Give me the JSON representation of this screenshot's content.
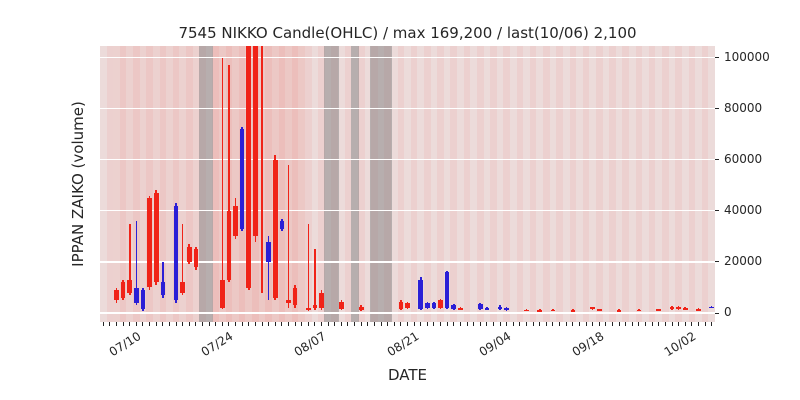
{
  "chart_data": {
    "type": "candlestick",
    "title": "7545 NIKKO Candle(OHLC) / max 169,200 / last(10/06) 2,100",
    "xlabel": "DATE",
    "ylabel": "IPPAN ZAIKO (volume)",
    "ticker": "7545",
    "name": "NIKKO",
    "max_value": 169200,
    "last": {
      "date": "10/06",
      "value": 2100
    },
    "ylim": [
      -3500,
      104500
    ],
    "y_ticks": [
      0,
      20000,
      40000,
      60000,
      80000,
      100000
    ],
    "x_range_days": 93,
    "x_ticks": [
      {
        "day": 4,
        "label": "07/10"
      },
      {
        "day": 18,
        "label": "07/24"
      },
      {
        "day": 32,
        "label": "08/07"
      },
      {
        "day": 46,
        "label": "08/21"
      },
      {
        "day": 60,
        "label": "09/04"
      },
      {
        "day": 74,
        "label": "09/18"
      },
      {
        "day": 88,
        "label": "10/02"
      }
    ],
    "legend": "none",
    "grid": true,
    "colors": {
      "up": "#f02318",
      "down": "#2b1fd6",
      "grid": "#ffffff",
      "plot_bg": "#ece6e6",
      "stripe_a": "rgba(240,35,24,0.055)",
      "stripe_b": "rgba(240,35,24,0.11)",
      "closed_day": "rgba(120,120,120,0.45)",
      "tick": "#262626"
    },
    "background_bands": [
      {
        "from": 1.5,
        "to": 14.4,
        "color": "rgba(240,35,24,0.05)"
      },
      {
        "from": 16.6,
        "to": 30.5,
        "color": "rgba(240,35,24,0.10)"
      },
      {
        "from": 14.4,
        "to": 16.6,
        "color": "rgba(120,120,120,0.45)"
      },
      {
        "from": 33.4,
        "to": 35.6,
        "color": "rgba(120,120,120,0.45)"
      },
      {
        "from": 37.4,
        "to": 38.6,
        "color": "rgba(120,120,120,0.45)"
      },
      {
        "from": 40.4,
        "to": 43.6,
        "color": "rgba(120,120,120,0.45)"
      }
    ],
    "candle_format": [
      "day",
      "date",
      "open",
      "high",
      "low",
      "close"
    ],
    "candles": [
      [
        2,
        "07/08",
        5000,
        10000,
        4000,
        9000
      ],
      [
        3,
        "07/09",
        6000,
        13000,
        5000,
        12000
      ],
      [
        4,
        "07/10",
        8000,
        35000,
        7000,
        13000
      ],
      [
        5,
        "07/11",
        10000,
        36000,
        3000,
        4000
      ],
      [
        6,
        "07/12",
        9000,
        10000,
        1000,
        1500
      ],
      [
        7,
        "07/13",
        10000,
        46000,
        9000,
        45000
      ],
      [
        8,
        "07/14",
        12000,
        48000,
        11000,
        47000
      ],
      [
        9,
        "07/15",
        12000,
        20000,
        6000,
        7000
      ],
      [
        11,
        "07/17",
        42000,
        43000,
        4000,
        5000
      ],
      [
        12,
        "07/18",
        8000,
        35000,
        7000,
        12000
      ],
      [
        13,
        "07/19",
        20000,
        27000,
        19000,
        26000
      ],
      [
        14,
        "07/20",
        18000,
        26000,
        17000,
        25000
      ],
      [
        18,
        "07/24",
        2000,
        100000,
        1500,
        13000
      ],
      [
        19,
        "07/25",
        13000,
        97000,
        12000,
        40000
      ],
      [
        20,
        "07/26",
        30000,
        45000,
        29000,
        42000
      ],
      [
        21,
        "07/27",
        72000,
        73000,
        32000,
        33000
      ],
      [
        22,
        "07/28",
        10000,
        169200,
        9000,
        165000
      ],
      [
        23,
        "07/29",
        30000,
        169200,
        28000,
        160000
      ],
      [
        24,
        "07/30",
        140000,
        169200,
        8000,
        169200
      ],
      [
        25,
        "07/31",
        28000,
        30000,
        5000,
        20000
      ],
      [
        26,
        "08/01",
        6000,
        62000,
        5000,
        60000
      ],
      [
        27,
        "08/02",
        36000,
        37000,
        32000,
        33000
      ],
      [
        28,
        "08/03",
        4000,
        58000,
        2000,
        5000
      ],
      [
        29,
        "08/04",
        3000,
        11000,
        2000,
        10000
      ],
      [
        31,
        "08/06",
        1000,
        35000,
        800,
        2000
      ],
      [
        32,
        "08/07",
        2000,
        25000,
        1000,
        3000
      ],
      [
        33,
        "08/08",
        2000,
        9000,
        1000,
        8000
      ],
      [
        36,
        "08/11",
        1500,
        5000,
        1000,
        4500
      ],
      [
        39,
        "08/14",
        1000,
        3000,
        800,
        2500
      ],
      [
        45,
        "08/20",
        1500,
        5000,
        1000,
        4500
      ],
      [
        46,
        "08/21",
        2000,
        4500,
        1500,
        4000
      ],
      [
        48,
        "08/23",
        13000,
        14000,
        1000,
        1500
      ],
      [
        49,
        "08/24",
        4000,
        4500,
        1500,
        2000
      ],
      [
        50,
        "08/25",
        4000,
        4500,
        1500,
        2000
      ],
      [
        51,
        "08/26",
        2000,
        5500,
        1500,
        5000
      ],
      [
        52,
        "08/27",
        16000,
        16500,
        1500,
        2000
      ],
      [
        53,
        "08/28",
        3000,
        3500,
        1000,
        1500
      ],
      [
        54,
        "08/29",
        1500,
        2500,
        1000,
        2000
      ],
      [
        57,
        "09/01",
        3500,
        4000,
        1000,
        1500
      ],
      [
        58,
        "09/02",
        2000,
        2500,
        1000,
        1200
      ],
      [
        60,
        "09/04",
        2500,
        3000,
        1000,
        1500
      ],
      [
        61,
        "09/05",
        2000,
        2200,
        900,
        1100
      ],
      [
        64,
        "09/08",
        1200,
        1500,
        900,
        1300
      ],
      [
        66,
        "09/10",
        1100,
        1400,
        900,
        1200
      ],
      [
        68,
        "09/12",
        1200,
        1500,
        900,
        1300
      ],
      [
        71,
        "09/15",
        1100,
        1400,
        800,
        1200
      ],
      [
        74,
        "09/18",
        1500,
        2500,
        1000,
        2200
      ],
      [
        75,
        "09/19",
        1300,
        1600,
        900,
        1400
      ],
      [
        78,
        "09/22",
        1100,
        1400,
        800,
        1200
      ],
      [
        81,
        "09/25",
        1200,
        1500,
        900,
        1300
      ],
      [
        84,
        "09/28",
        1300,
        1700,
        900,
        1500
      ],
      [
        86,
        "09/30",
        1500,
        2800,
        1000,
        2500
      ],
      [
        87,
        "10/01",
        1800,
        2600,
        1200,
        2400
      ],
      [
        88,
        "10/02",
        1500,
        2200,
        1000,
        2000
      ],
      [
        90,
        "10/04",
        1400,
        1800,
        1000,
        1600
      ],
      [
        92,
        "10/06",
        2500,
        2700,
        1900,
        2100
      ]
    ]
  }
}
